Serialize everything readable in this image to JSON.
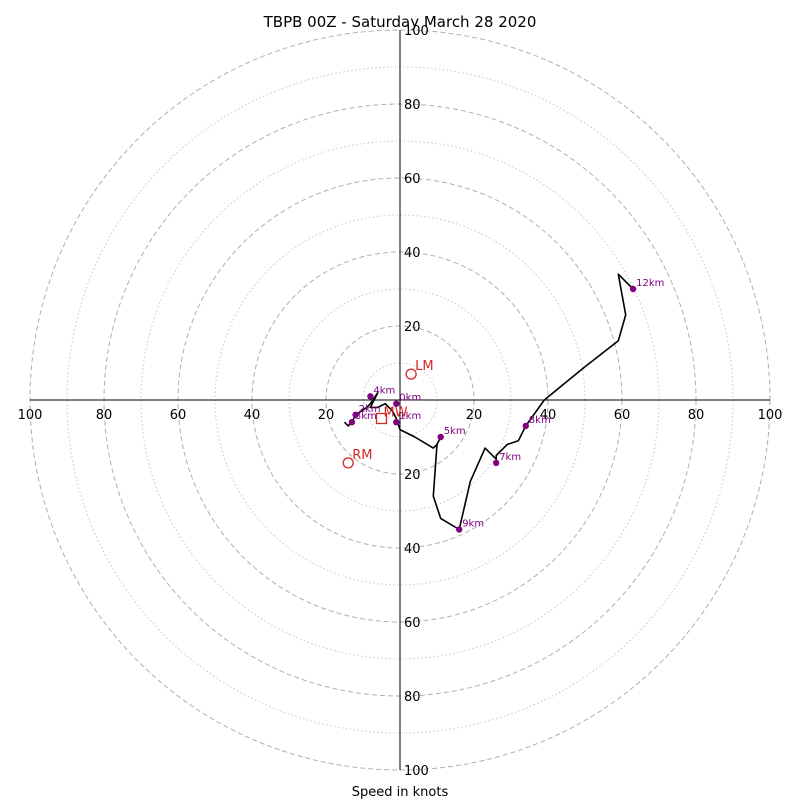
{
  "chart_data": {
    "type": "hodograph",
    "title": "TBPB 00Z - Saturday March 28 2020",
    "xlabel": "Speed in knots",
    "ring_ticks": [
      20,
      40,
      60,
      80,
      100
    ],
    "range": 100,
    "colors": {
      "trace": "#000000",
      "height_marker": "#800080",
      "motion": "#d62728",
      "grid": "#bbbbbb"
    },
    "trace": [
      [
        -15,
        -6
      ],
      [
        -14,
        -7
      ],
      [
        -13,
        -6
      ],
      [
        -12,
        -4
      ],
      [
        -9,
        -2
      ],
      [
        -8,
        -1
      ],
      [
        -6,
        2
      ],
      [
        -7,
        0
      ],
      [
        -8,
        -2
      ],
      [
        -6,
        -2
      ],
      [
        -4,
        -1
      ],
      [
        -2,
        -3
      ],
      [
        -1,
        -5
      ],
      [
        0,
        -8
      ],
      [
        4,
        -10
      ],
      [
        9,
        -13
      ],
      [
        10,
        -12
      ],
      [
        11,
        -10
      ],
      [
        10,
        -12
      ],
      [
        9,
        -26
      ],
      [
        11,
        -32
      ],
      [
        16,
        -35
      ],
      [
        19,
        -22
      ],
      [
        23,
        -13
      ],
      [
        26,
        -16
      ],
      [
        26,
        -15
      ],
      [
        29,
        -12
      ],
      [
        32,
        -11
      ],
      [
        34,
        -7
      ],
      [
        39,
        0
      ],
      [
        50,
        9
      ],
      [
        59,
        16
      ],
      [
        61,
        23
      ],
      [
        59,
        34
      ],
      [
        63,
        30
      ]
    ],
    "height_labels": [
      {
        "label": "12km",
        "x": 63,
        "y": 30
      },
      {
        "label": "9km",
        "x": 16,
        "y": -35
      },
      {
        "label": "8km",
        "x": 34,
        "y": -7
      },
      {
        "label": "7km",
        "x": 26,
        "y": -17
      },
      {
        "label": "5km",
        "x": 11,
        "y": -10
      },
      {
        "label": "4km",
        "x": -8,
        "y": 1
      },
      {
        "label": "3km",
        "x": -13,
        "y": -6
      },
      {
        "label": "2km",
        "x": -12,
        "y": -4
      },
      {
        "label": "1km",
        "x": -1,
        "y": -6
      },
      {
        "label": "0km",
        "x": -1,
        "y": -1
      }
    ],
    "storm_motion": [
      {
        "label": "LM",
        "x": 3,
        "y": 7
      },
      {
        "label": "RM",
        "x": -14,
        "y": -17
      }
    ],
    "mean_wind": {
      "label": "MW",
      "x": -5,
      "y": -5
    }
  }
}
